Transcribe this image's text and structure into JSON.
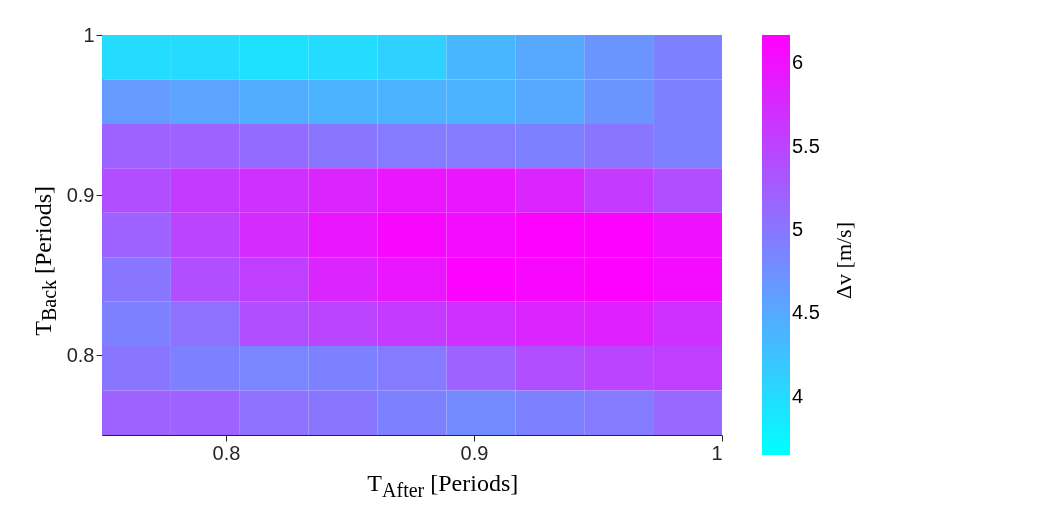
{
  "chart_data": {
    "type": "heatmap",
    "xlabel": "T$_{After}$ [Periods]",
    "ylabel": "T$_{Back}$ [Periods]",
    "clabel": "Δv [m/s]",
    "xlim": [
      0.75,
      1
    ],
    "ylim": [
      0.75,
      1
    ],
    "xticks": [
      0.8,
      0.9,
      1
    ],
    "yticks": [
      0.8,
      0.9,
      1
    ],
    "clim": [
      3.65,
      6.17
    ],
    "cticks": [
      4,
      4.5,
      5,
      5.5,
      6
    ],
    "cells": [
      [
        4.0,
        4.0,
        3.95,
        4.0,
        4.1,
        4.35,
        4.5,
        4.7,
        4.9
      ],
      [
        4.65,
        4.55,
        4.45,
        4.4,
        4.4,
        4.4,
        4.5,
        4.7,
        4.9
      ],
      [
        5.2,
        5.2,
        5.1,
        5.0,
        4.95,
        4.95,
        4.9,
        5.0,
        4.9
      ],
      [
        5.4,
        5.6,
        5.7,
        5.8,
        5.95,
        5.95,
        5.8,
        5.6,
        5.4
      ],
      [
        5.2,
        5.5,
        5.75,
        5.95,
        6.1,
        6.05,
        6.15,
        6.15,
        6.0
      ],
      [
        5.0,
        5.4,
        5.55,
        5.8,
        5.95,
        6.15,
        6.1,
        6.15,
        6.05
      ],
      [
        4.9,
        5.05,
        5.4,
        5.5,
        5.6,
        5.7,
        5.8,
        5.85,
        5.7
      ],
      [
        5.0,
        4.9,
        4.85,
        4.9,
        4.95,
        5.2,
        5.4,
        5.5,
        5.55
      ],
      [
        5.2,
        5.2,
        5.05,
        5.0,
        4.9,
        4.8,
        4.9,
        4.95,
        5.15
      ]
    ]
  }
}
